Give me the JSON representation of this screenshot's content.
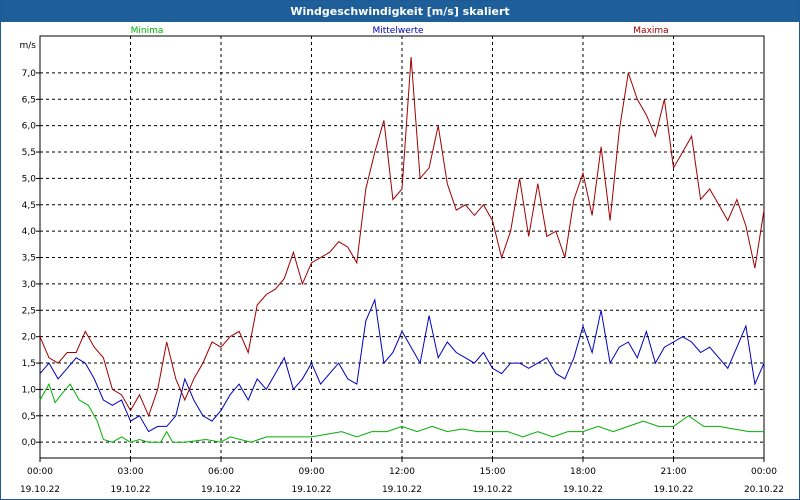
{
  "window": {
    "title": "Windgeschwindigkeit [m/s] skaliert"
  },
  "chart_data": {
    "type": "line",
    "title": "Windgeschwindigkeit [m/s] skaliert",
    "ylabel": "m/s",
    "ylim": [
      -0.3,
      7.7
    ],
    "yticks": [
      "0,0",
      "0,5",
      "1,0",
      "1,5",
      "2,0",
      "2,5",
      "3,0",
      "3,5",
      "4,0",
      "4,5",
      "5,0",
      "5,5",
      "6,0",
      "6,5",
      "7,0"
    ],
    "xlim": [
      0,
      24
    ],
    "xticks": [
      {
        "time": "00:00",
        "date": "19.10.22"
      },
      {
        "time": "03:00",
        "date": "19.10.22"
      },
      {
        "time": "06:00",
        "date": "19.10.22"
      },
      {
        "time": "09:00",
        "date": "19.10.22"
      },
      {
        "time": "12:00",
        "date": "19.10.22"
      },
      {
        "time": "15:00",
        "date": "19.10.22"
      },
      {
        "time": "18:00",
        "date": "19.10.22"
      },
      {
        "time": "21:00",
        "date": "19.10.22"
      },
      {
        "time": "00:00",
        "date": "20.10.22"
      }
    ],
    "grid": true,
    "legend_position": "top",
    "series": [
      {
        "name": "Minima",
        "color": "#00b000",
        "x": [
          0,
          0.3,
          0.5,
          0.7,
          1.0,
          1.3,
          1.6,
          1.9,
          2.1,
          2.4,
          2.7,
          3.0,
          3.3,
          3.6,
          4.0,
          4.2,
          4.4,
          4.8,
          5.5,
          6.0,
          6.3,
          7.0,
          7.5,
          8.0,
          8.5,
          9.0,
          10.0,
          10.5,
          11.0,
          11.5,
          12.0,
          12.5,
          13.0,
          13.5,
          14.0,
          14.5,
          15.0,
          15.5,
          16.0,
          16.5,
          17.0,
          17.5,
          18.0,
          18.5,
          19.0,
          19.5,
          20.0,
          20.5,
          21.0,
          21.5,
          22.0,
          22.5,
          23.0,
          23.5,
          24.0
        ],
        "values": [
          0.8,
          1.1,
          0.75,
          0.9,
          1.1,
          0.8,
          0.7,
          0.4,
          0.05,
          0.0,
          0.1,
          0.0,
          0.05,
          0.0,
          0.0,
          0.2,
          0.0,
          0.0,
          0.05,
          0.0,
          0.1,
          0.0,
          0.1,
          0.1,
          0.1,
          0.1,
          0.2,
          0.1,
          0.2,
          0.2,
          0.3,
          0.2,
          0.3,
          0.2,
          0.25,
          0.2,
          0.2,
          0.2,
          0.1,
          0.2,
          0.1,
          0.2,
          0.2,
          0.3,
          0.2,
          0.3,
          0.4,
          0.3,
          0.3,
          0.5,
          0.3,
          0.3,
          0.25,
          0.2,
          0.2
        ]
      },
      {
        "name": "Mittelwerte",
        "color": "#0000c0",
        "x": [
          0,
          0.3,
          0.6,
          0.9,
          1.2,
          1.5,
          1.8,
          2.1,
          2.4,
          2.7,
          3.0,
          3.3,
          3.6,
          3.9,
          4.2,
          4.5,
          4.8,
          5.1,
          5.4,
          5.7,
          6.0,
          6.3,
          6.6,
          6.9,
          7.2,
          7.5,
          7.8,
          8.1,
          8.4,
          8.7,
          9.0,
          9.3,
          9.6,
          9.9,
          10.2,
          10.5,
          10.8,
          11.1,
          11.4,
          11.7,
          12.0,
          12.3,
          12.6,
          12.9,
          13.2,
          13.5,
          13.8,
          14.1,
          14.4,
          14.7,
          15.0,
          15.3,
          15.6,
          15.9,
          16.2,
          16.5,
          16.8,
          17.1,
          17.4,
          17.7,
          18.0,
          18.3,
          18.6,
          18.9,
          19.2,
          19.5,
          19.8,
          20.1,
          20.4,
          20.7,
          21.0,
          21.3,
          21.6,
          21.9,
          22.2,
          22.5,
          22.8,
          23.1,
          23.4,
          23.7,
          24.0
        ],
        "values": [
          1.3,
          1.5,
          1.2,
          1.4,
          1.6,
          1.5,
          1.2,
          0.8,
          0.7,
          0.8,
          0.4,
          0.5,
          0.2,
          0.3,
          0.3,
          0.5,
          1.2,
          0.8,
          0.5,
          0.4,
          0.6,
          0.9,
          1.1,
          0.8,
          1.2,
          1.0,
          1.3,
          1.6,
          1.0,
          1.2,
          1.5,
          1.1,
          1.3,
          1.5,
          1.2,
          1.1,
          2.3,
          2.7,
          1.5,
          1.7,
          2.1,
          1.8,
          1.5,
          2.4,
          1.6,
          1.9,
          1.7,
          1.6,
          1.5,
          1.7,
          1.4,
          1.3,
          1.5,
          1.5,
          1.4,
          1.5,
          1.6,
          1.3,
          1.2,
          1.6,
          2.2,
          1.7,
          2.5,
          1.5,
          1.8,
          1.9,
          1.6,
          2.1,
          1.5,
          1.8,
          1.9,
          2.0,
          1.9,
          1.7,
          1.8,
          1.6,
          1.4,
          1.8,
          2.2,
          1.1,
          1.5
        ]
      },
      {
        "name": "Maxima",
        "color": "#a00000",
        "x": [
          0,
          0.3,
          0.6,
          0.9,
          1.2,
          1.5,
          1.8,
          2.1,
          2.4,
          2.7,
          3.0,
          3.3,
          3.6,
          3.9,
          4.2,
          4.5,
          4.8,
          5.1,
          5.4,
          5.7,
          6.0,
          6.3,
          6.6,
          6.9,
          7.2,
          7.5,
          7.8,
          8.1,
          8.4,
          8.7,
          9.0,
          9.3,
          9.6,
          9.9,
          10.2,
          10.5,
          10.8,
          11.1,
          11.4,
          11.7,
          12.0,
          12.3,
          12.6,
          12.9,
          13.2,
          13.5,
          13.8,
          14.1,
          14.4,
          14.7,
          15.0,
          15.3,
          15.6,
          15.9,
          16.2,
          16.5,
          16.8,
          17.1,
          17.4,
          17.7,
          18.0,
          18.3,
          18.6,
          18.9,
          19.2,
          19.5,
          19.8,
          20.1,
          20.4,
          20.7,
          21.0,
          21.3,
          21.6,
          21.9,
          22.2,
          22.5,
          22.8,
          23.1,
          23.4,
          23.7,
          24.0
        ],
        "values": [
          2.0,
          1.6,
          1.5,
          1.7,
          1.7,
          2.1,
          1.8,
          1.6,
          1.0,
          0.9,
          0.6,
          0.9,
          0.5,
          1.0,
          1.9,
          1.2,
          0.8,
          1.2,
          1.5,
          1.9,
          1.8,
          2.0,
          2.1,
          1.7,
          2.6,
          2.8,
          2.9,
          3.1,
          3.6,
          3.0,
          3.4,
          3.5,
          3.6,
          3.8,
          3.7,
          3.4,
          4.8,
          5.5,
          6.1,
          4.6,
          4.8,
          7.3,
          5.0,
          5.2,
          6.0,
          4.9,
          4.4,
          4.5,
          4.3,
          4.5,
          4.2,
          3.5,
          4.0,
          5.0,
          3.9,
          4.9,
          3.9,
          4.0,
          3.5,
          4.6,
          5.1,
          4.3,
          5.6,
          4.2,
          5.9,
          7.0,
          6.5,
          6.2,
          5.8,
          6.5,
          5.2,
          5.5,
          5.8,
          4.6,
          4.8,
          4.5,
          4.2,
          4.6,
          4.1,
          3.3,
          4.4
        ]
      }
    ]
  }
}
